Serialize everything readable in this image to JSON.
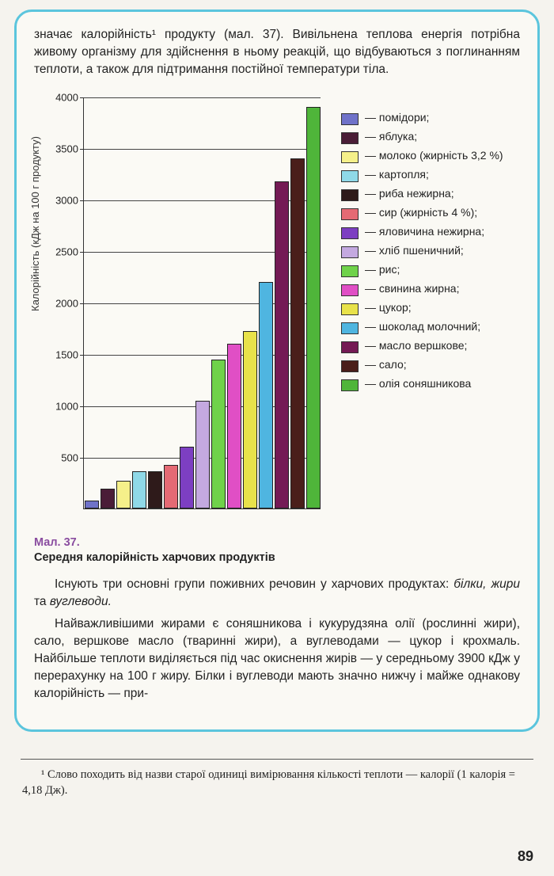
{
  "intro_paragraph": "значає калорійність¹ продукту (мал. 37). Вивільнена теплова енергія потрібна живому організму для здійснення в ньому реакцій, що відбуваються з поглинанням теплоти, а також для підтримання постійної температури тіла.",
  "chart": {
    "type": "bar",
    "ylabel": "Калорійність (кДж на 100 г продукту)",
    "ylim": [
      0,
      4000
    ],
    "ytick_step": 500,
    "yticks": [
      500,
      1000,
      1500,
      2000,
      2500,
      3000,
      3500,
      4000
    ],
    "background_color": "#fbfaf5",
    "grid_color": "#444444",
    "axis_color": "#333333",
    "bar_width": 0.92,
    "bar_border": "#222222",
    "bars": [
      {
        "value": 80,
        "color": "#6f72c9",
        "label": "— помідори;"
      },
      {
        "value": 190,
        "color": "#4a1d37",
        "label": "— яблука;"
      },
      {
        "value": 270,
        "color": "#f5f08a",
        "label": "— молоко (жирність 3,2 %)"
      },
      {
        "value": 360,
        "color": "#8fd9e8",
        "label": "— картопля;"
      },
      {
        "value": 360,
        "color": "#2e1a1a",
        "label": "— риба нежирна;"
      },
      {
        "value": 420,
        "color": "#e56a74",
        "label": "— сир (жирність 4 %);"
      },
      {
        "value": 600,
        "color": "#7d3fc2",
        "label": "— яловичина нежирна;"
      },
      {
        "value": 1050,
        "color": "#c4a9e0",
        "label": "— хліб пшеничний;"
      },
      {
        "value": 1450,
        "color": "#6fd24a",
        "label": "— рис;"
      },
      {
        "value": 1600,
        "color": "#e04fc5",
        "label": "— свинина жирна;"
      },
      {
        "value": 1720,
        "color": "#e8e24a",
        "label": "— цукор;"
      },
      {
        "value": 2200,
        "color": "#4fb5e0",
        "label": "— шоколад молочний;"
      },
      {
        "value": 3180,
        "color": "#741a55",
        "label": "— масло вершкове;"
      },
      {
        "value": 3400,
        "color": "#4a1e1a",
        "label": "— сало;"
      },
      {
        "value": 3900,
        "color": "#4fb53a",
        "label": "— олія соняшникова"
      }
    ]
  },
  "caption_num": "Мал. 37.",
  "caption_text": "Середня калорійність харчових продуктів",
  "para2_pre": "Існують три основні групи поживних речовин у харчових продуктах: ",
  "para2_ital": "білки, жири",
  "para2_mid": " та ",
  "para2_ital2": "вуглеводи.",
  "para3": "Найважливішими жирами є соняшникова і кукурудзяна олії (рослинні жири), сало, вершкове масло (тваринні жири), а вуглеводами — цукор і крохмаль. Найбільше теплоти виділяється під час окиснення жирів — у середньому 3900 кДж у перерахунку на 100 г жиру. Білки і вуглеводи мають значно нижчу і майже однакову калорійність — при-",
  "footnote": "¹ Слово походить від назви старої одиниці вимірювання кількості теплоти — калорії (1 калорія = 4,18 Дж).",
  "page_number": "89"
}
